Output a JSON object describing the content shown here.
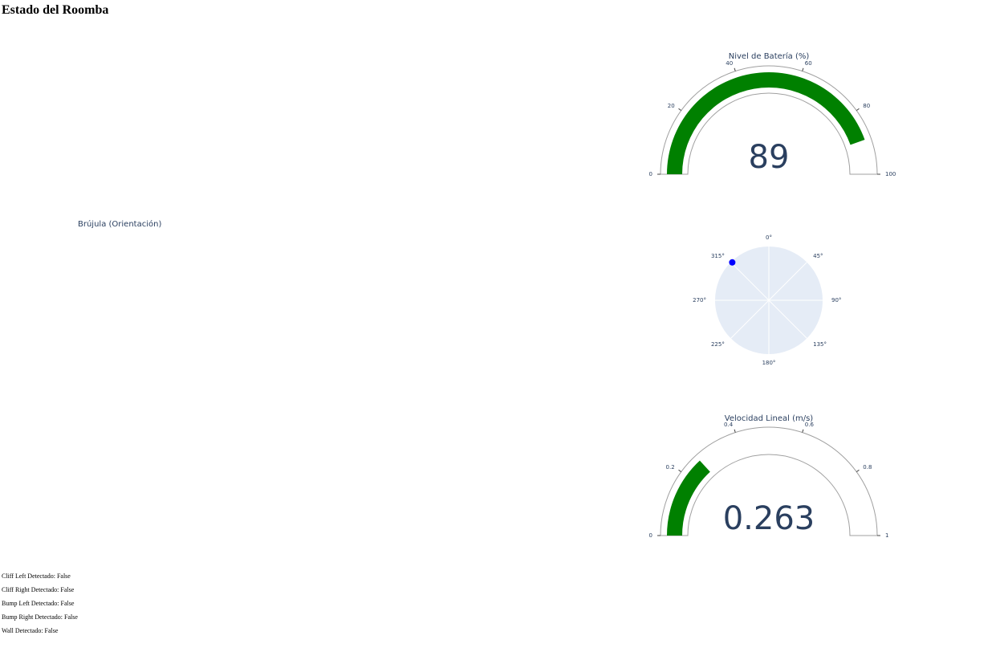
{
  "page": {
    "title": "Estado del Roomba"
  },
  "chart_data": [
    {
      "type": "gauge",
      "title": "Nivel de Batería (%)",
      "value": 89,
      "value_text": "89",
      "range": [
        0,
        100
      ],
      "ticks": [
        0,
        20,
        40,
        60,
        80,
        100
      ],
      "tick_labels": [
        "0",
        "20",
        "40",
        "60",
        "80",
        "100"
      ],
      "bar_color": "#008000"
    },
    {
      "type": "polar-scatter",
      "title": "Brújula (Orientación)",
      "points": [
        {
          "theta": 316,
          "r": 1
        }
      ],
      "angular_ticks": [
        "0°",
        "45°",
        "90°",
        "135°",
        "180°",
        "225°",
        "270°",
        "315°"
      ],
      "marker_color": "#0000ff",
      "background_color": "#e5ecf6"
    },
    {
      "type": "gauge",
      "title": "Velocidad Lineal (m/s)",
      "value": 0.263,
      "value_text": "0.263",
      "range": [
        0,
        1
      ],
      "ticks": [
        0,
        0.2,
        0.4,
        0.6,
        0.8,
        1
      ],
      "tick_labels": [
        "0",
        "0.2",
        "0.4",
        "0.6",
        "0.8",
        "1"
      ],
      "bar_color": "#008000"
    }
  ],
  "status": [
    "Cliff Left Detectado: False",
    "Cliff Right Detectado: False",
    "Bump Left Detectado: False",
    "Bump Right Detectado: False",
    "Wall Detectado: False"
  ]
}
